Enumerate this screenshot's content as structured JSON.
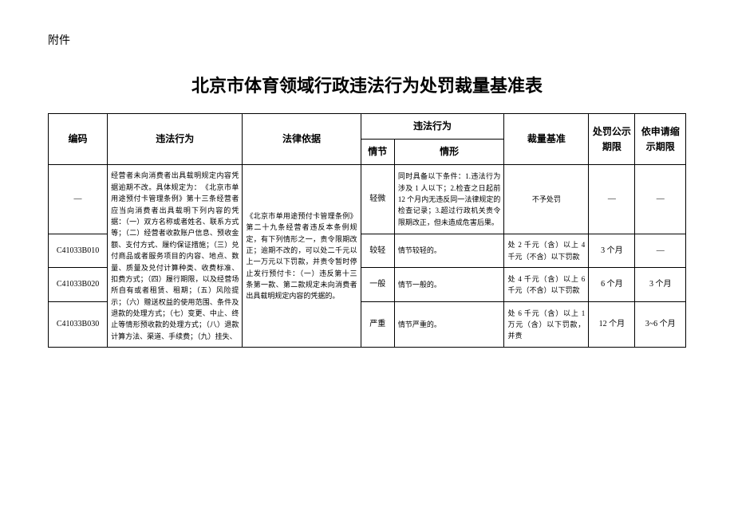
{
  "attachment_label": "附件",
  "title": "北京市体育领域行政违法行为处罚裁量基准表",
  "headers": {
    "code": "编码",
    "violation": "违法行为",
    "legal_basis": "法律依据",
    "violation_detail": "违法行为",
    "level": "情节",
    "situation": "情形",
    "standard": "裁量基准",
    "publicity_period": "处罚公示期限",
    "shorten_period": "依申请缩示期限"
  },
  "violation_text": "经营者未向消费者出具载明规定内容凭据逾期不改。具体规定为：　《北京市单用途预付卡管理条例》第十三条经营者应当向消费者出具载明下列内容的凭据：（一）双方名称或者姓名、联系方式等；（二）经营者收款账户信息、预收金额、支付方式、履约保证措施；（三）兑付商品或者服务项目的内容、地点、数量、质量及兑付计算种类、收费标准、扣费方式；（四）履行期限，以及经营场所自有或者租赁、租期；（五）风险提示；（六）赠送权益的使用范围、条件及退款的处理方式；（七）变更、中止、终止等情形预收款的处理方式；（八）退款计算方法、渠道、手续费；（九）挂失、",
  "legal_text": "《北京市单用途预付卡管理条例》第二十九条经营者违反本条例规定，有下列情形之一，责令限期改正；逾期不改的，可以处二千元以上一万元以下罚款，并责令暂时停止发行预付卡：（一）违反第十三条第一款、第二款规定未向消费者出具载明规定内容的凭据的。",
  "rows": [
    {
      "code": "—",
      "level": "轻微",
      "situation": "同时具备以下条件：1.违法行为涉及 1 人以下；2.检查之日起前 12 个月内无违反同一法律规定的检查记录；3.超过行政机关责令限期改正，但未造成危害后果。",
      "standard": "不予处罚",
      "publicity": "—",
      "shorten": "—"
    },
    {
      "code": "C41033B010",
      "level": "较轻",
      "situation": "情节较轻的。",
      "standard": "处 2 千元（含）以上 4 千元（不含）以下罚款",
      "publicity": "3 个月",
      "shorten": "—"
    },
    {
      "code": "C41033B020",
      "level": "一般",
      "situation": "情节一般的。",
      "standard": "处 4 千元（含）以上 6 千元（不含）以下罚款",
      "publicity": "6 个月",
      "shorten": "3 个月"
    },
    {
      "code": "C41033B030",
      "level": "严重",
      "situation": "情节严重的。",
      "standard": "处 6 千元（含）以上 1 万元（含）以下罚款，并责",
      "publicity": "12 个月",
      "shorten": "3~6 个月"
    }
  ]
}
